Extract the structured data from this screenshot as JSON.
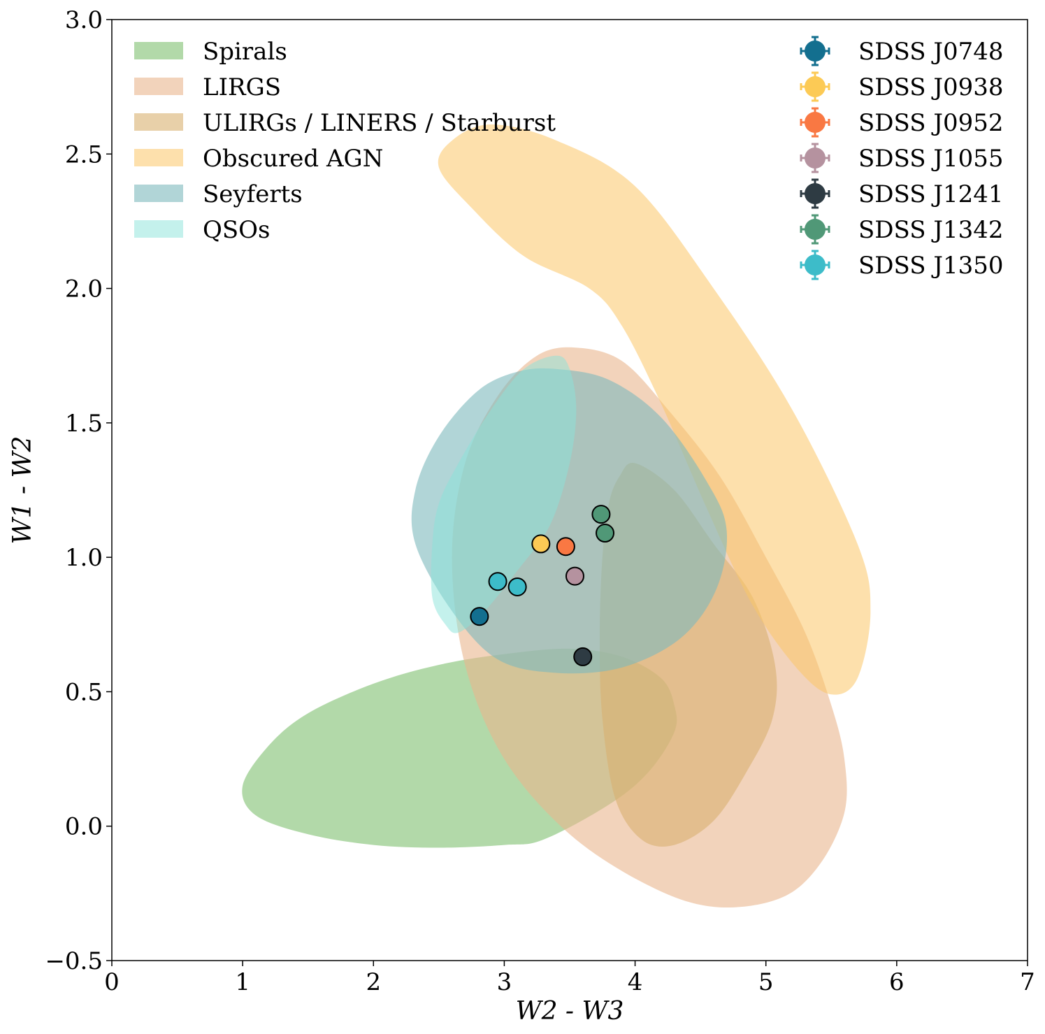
{
  "chart_data": {
    "type": "scatter",
    "title": "",
    "xlabel": "W2 - W3",
    "ylabel": "W1 - W2",
    "xlim": [
      0,
      7
    ],
    "ylim": [
      -0.5,
      3.0
    ],
    "xticks": [
      0,
      1,
      2,
      3,
      4,
      5,
      6,
      7
    ],
    "yticks": [
      -0.5,
      0.0,
      0.5,
      1.0,
      1.5,
      2.0,
      2.5,
      3.0
    ],
    "xtick_labels": [
      "0",
      "1",
      "2",
      "3",
      "4",
      "5",
      "6",
      "7"
    ],
    "ytick_labels": [
      "−0.5",
      "0.0",
      "0.5",
      "1.0",
      "1.5",
      "2.0",
      "2.5",
      "3.0"
    ],
    "grid": false,
    "regions": [
      {
        "name": "Spirals",
        "color": "#7fbf6f",
        "opacity": 0.6,
        "outline": [
          [
            1.0,
            0.15
          ],
          [
            1.2,
            0.3
          ],
          [
            1.5,
            0.42
          ],
          [
            2.0,
            0.53
          ],
          [
            2.5,
            0.6
          ],
          [
            3.0,
            0.64
          ],
          [
            3.5,
            0.66
          ],
          [
            3.9,
            0.63
          ],
          [
            4.2,
            0.55
          ],
          [
            4.3,
            0.45
          ],
          [
            4.3,
            0.35
          ],
          [
            4.1,
            0.2
          ],
          [
            3.8,
            0.08
          ],
          [
            3.3,
            -0.05
          ],
          [
            3.0,
            -0.07
          ],
          [
            2.5,
            -0.08
          ],
          [
            2.0,
            -0.07
          ],
          [
            1.5,
            -0.03
          ],
          [
            1.1,
            0.04
          ]
        ]
      },
      {
        "name": "LIRGS",
        "color": "#e9b68e",
        "opacity": 0.6,
        "outline": [
          [
            3.55,
            1.78
          ],
          [
            3.9,
            1.73
          ],
          [
            4.25,
            1.55
          ],
          [
            4.65,
            1.3
          ],
          [
            5.0,
            1.0
          ],
          [
            5.3,
            0.72
          ],
          [
            5.5,
            0.45
          ],
          [
            5.6,
            0.25
          ],
          [
            5.6,
            0.05
          ],
          [
            5.4,
            -0.15
          ],
          [
            5.1,
            -0.27
          ],
          [
            4.6,
            -0.3
          ],
          [
            4.1,
            -0.22
          ],
          [
            3.5,
            -0.03
          ],
          [
            3.0,
            0.25
          ],
          [
            2.7,
            0.6
          ],
          [
            2.6,
            1.0
          ],
          [
            2.7,
            1.35
          ],
          [
            2.95,
            1.6
          ],
          [
            3.25,
            1.75
          ]
        ]
      },
      {
        "name": "ULIRGs / LINERS / Starburst",
        "color": "#d8b170",
        "opacity": 0.6,
        "outline": [
          [
            4.0,
            1.35
          ],
          [
            4.3,
            1.25
          ],
          [
            4.6,
            1.05
          ],
          [
            4.9,
            0.85
          ],
          [
            5.07,
            0.6
          ],
          [
            5.05,
            0.4
          ],
          [
            4.85,
            0.2
          ],
          [
            4.6,
            0.02
          ],
          [
            4.3,
            -0.07
          ],
          [
            4.05,
            -0.05
          ],
          [
            3.85,
            0.1
          ],
          [
            3.75,
            0.4
          ],
          [
            3.73,
            0.7
          ],
          [
            3.75,
            1.0
          ],
          [
            3.8,
            1.2
          ],
          [
            3.88,
            1.3
          ]
        ]
      },
      {
        "name": "Obscured AGN",
        "color": "#fcc767",
        "opacity": 0.55,
        "outline": [
          [
            2.6,
            2.55
          ],
          [
            2.9,
            2.61
          ],
          [
            3.4,
            2.55
          ],
          [
            4.0,
            2.38
          ],
          [
            4.6,
            2.0
          ],
          [
            5.2,
            1.55
          ],
          [
            5.7,
            1.05
          ],
          [
            5.8,
            0.8
          ],
          [
            5.7,
            0.55
          ],
          [
            5.5,
            0.49
          ],
          [
            5.25,
            0.58
          ],
          [
            4.9,
            0.82
          ],
          [
            4.55,
            1.18
          ],
          [
            4.2,
            1.57
          ],
          [
            3.9,
            1.86
          ],
          [
            3.65,
            2.0
          ],
          [
            3.15,
            2.12
          ],
          [
            2.75,
            2.3
          ],
          [
            2.5,
            2.45
          ]
        ]
      },
      {
        "name": "Seyferts",
        "color": "#7db9bd",
        "opacity": 0.6,
        "outline": [
          [
            3.4,
            1.7
          ],
          [
            3.8,
            1.66
          ],
          [
            4.2,
            1.52
          ],
          [
            4.55,
            1.28
          ],
          [
            4.7,
            1.1
          ],
          [
            4.62,
            0.88
          ],
          [
            4.35,
            0.7
          ],
          [
            3.9,
            0.59
          ],
          [
            3.4,
            0.57
          ],
          [
            2.95,
            0.62
          ],
          [
            2.6,
            0.8
          ],
          [
            2.32,
            1.05
          ],
          [
            2.32,
            1.25
          ],
          [
            2.5,
            1.45
          ],
          [
            2.8,
            1.62
          ],
          [
            3.1,
            1.69
          ]
        ]
      },
      {
        "name": "QSOs",
        "color": "#8ae3da",
        "opacity": 0.5,
        "outline": [
          [
            3.4,
            1.75
          ],
          [
            3.5,
            1.7
          ],
          [
            3.55,
            1.55
          ],
          [
            3.5,
            1.35
          ],
          [
            3.35,
            1.12
          ],
          [
            3.1,
            0.95
          ],
          [
            2.85,
            0.8
          ],
          [
            2.65,
            0.72
          ],
          [
            2.55,
            0.75
          ],
          [
            2.45,
            0.85
          ],
          [
            2.45,
            1.05
          ],
          [
            2.5,
            1.2
          ],
          [
            2.65,
            1.35
          ],
          [
            2.9,
            1.55
          ],
          [
            3.15,
            1.7
          ]
        ]
      }
    ],
    "series": [
      {
        "name": "SDSS J0748",
        "color": "#136f8f",
        "points": [
          [
            2.81,
            0.78
          ]
        ]
      },
      {
        "name": "SDSS J0938",
        "color": "#fcca55",
        "points": [
          [
            3.28,
            1.05
          ]
        ]
      },
      {
        "name": "SDSS J0952",
        "color": "#f97843",
        "points": [
          [
            3.47,
            1.04
          ]
        ]
      },
      {
        "name": "SDSS J1055",
        "color": "#b5929f",
        "points": [
          [
            3.54,
            0.93
          ]
        ]
      },
      {
        "name": "SDSS J1241",
        "color": "#2e3b43",
        "points": [
          [
            3.6,
            0.63
          ]
        ]
      },
      {
        "name": "SDSS J1342",
        "color": "#509877",
        "points": [
          [
            3.74,
            1.16
          ],
          [
            3.77,
            1.09
          ]
        ]
      },
      {
        "name": "SDSS J1350",
        "color": "#3dbcc9",
        "points": [
          [
            2.95,
            0.91
          ],
          [
            3.1,
            0.89
          ]
        ]
      }
    ],
    "legend_regions_position": "top-left",
    "legend_points_position": "top-right"
  }
}
